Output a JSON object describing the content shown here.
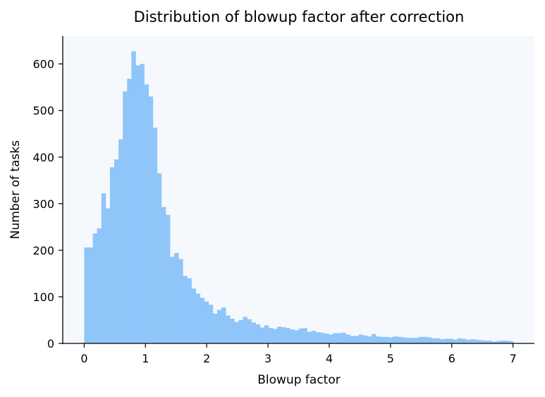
{
  "chart_data": {
    "type": "bar",
    "title": "Distribution of blowup factor after correction",
    "xlabel": "Blowup factor",
    "ylabel": "Number of tasks",
    "xlim": [
      -0.35,
      7.35
    ],
    "ylim": [
      0,
      660
    ],
    "xticks": [
      0,
      1,
      2,
      3,
      4,
      5,
      6,
      7
    ],
    "yticks": [
      0,
      100,
      200,
      300,
      400,
      500,
      600
    ],
    "bin_start": 0,
    "bin_width": 0.07,
    "values": [
      206,
      206,
      236,
      247,
      322,
      290,
      378,
      395,
      438,
      541,
      568,
      627,
      597,
      600,
      556,
      530,
      463,
      365,
      293,
      276,
      186,
      194,
      181,
      145,
      140,
      118,
      107,
      98,
      90,
      83,
      64,
      72,
      77,
      60,
      53,
      46,
      50,
      57,
      52,
      45,
      41,
      34,
      39,
      33,
      31,
      36,
      35,
      33,
      30,
      28,
      32,
      33,
      25,
      27,
      24,
      23,
      21,
      19,
      22,
      22,
      23,
      19,
      16,
      16,
      19,
      17,
      15,
      20,
      15,
      14,
      14,
      13,
      15,
      14,
      13,
      12,
      12,
      12,
      14,
      14,
      13,
      11,
      11,
      9,
      10,
      10,
      8,
      11,
      10,
      8,
      9,
      8,
      7,
      6,
      6,
      4,
      5,
      6,
      6,
      5
    ],
    "bar_color": "#90c5fa",
    "plot_background": "#f5f9fd",
    "grid": false
  }
}
